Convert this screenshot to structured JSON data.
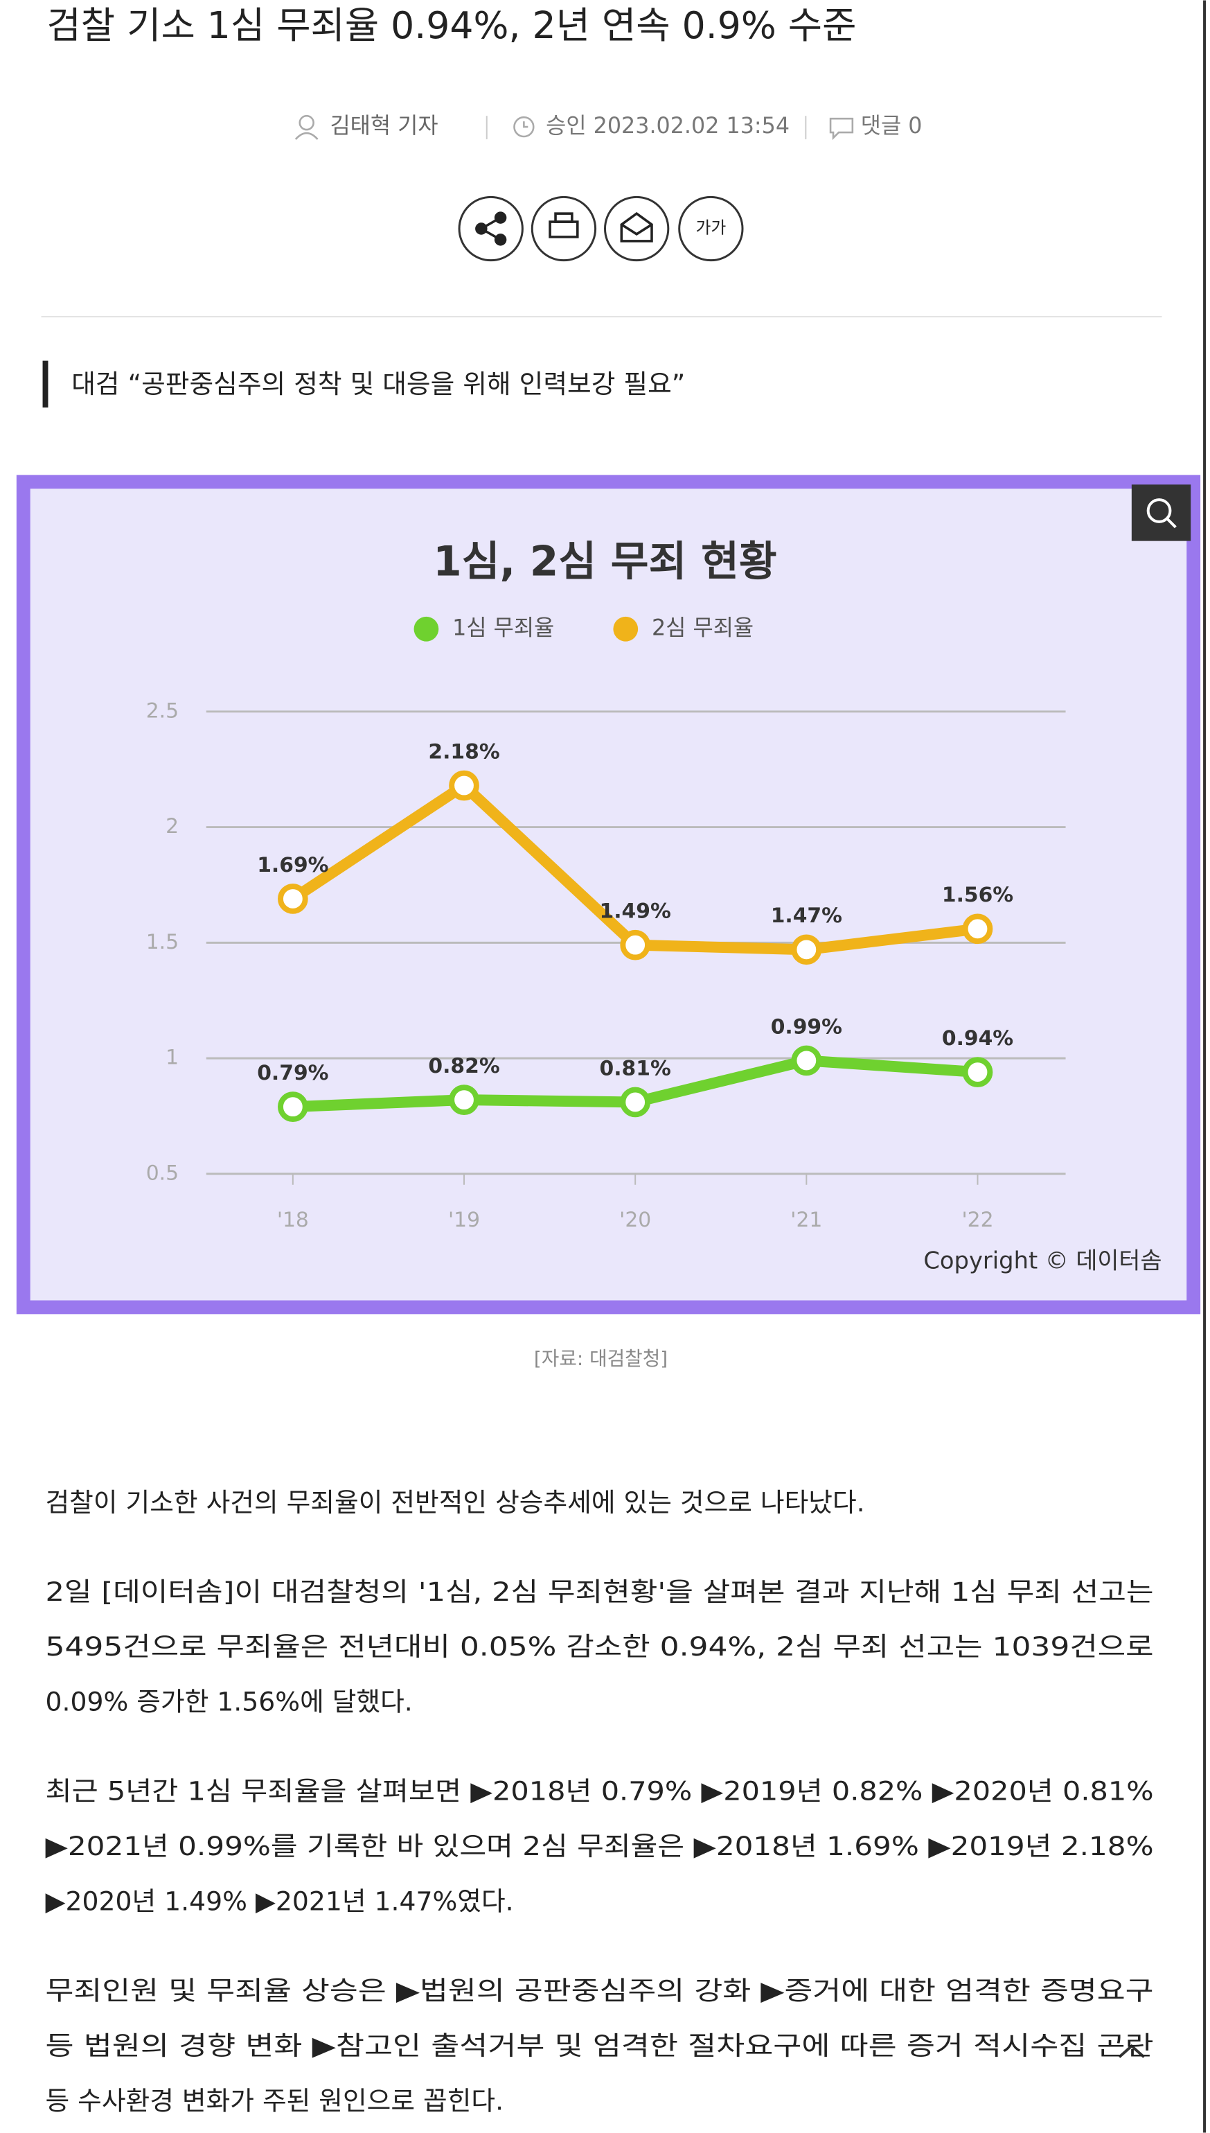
{
  "header": {
    "title": "검찰 기소 1심 무죄율 0.94%, 2년 연속 0.9% 수준",
    "reporter": "김태혁 기자",
    "approved": "승인 2023.02.02 13:54",
    "comments": "댓글 0",
    "font_button": "가가"
  },
  "subtitle": "대검 “공판중심주의 정착 및 대응을 위해 인력보강 필요”",
  "chart_data": {
    "type": "line",
    "title": "1심, 2심 무죄 현황",
    "categories": [
      "'18",
      "'19",
      "'20",
      "'21",
      "'22"
    ],
    "series": [
      {
        "name": "1심 무죄율",
        "color": "#6fd12f",
        "values": [
          0.79,
          0.82,
          0.81,
          0.99,
          0.94
        ],
        "value_labels": [
          "0.79%",
          "0.82%",
          "0.81%",
          "0.99%",
          "0.94%"
        ]
      },
      {
        "name": "2심 무죄율",
        "color": "#f0b31a",
        "values": [
          1.69,
          2.18,
          1.49,
          1.47,
          1.56
        ],
        "value_labels": [
          "1.69%",
          "2.18%",
          "1.49%",
          "1.47%",
          "1.56%"
        ]
      }
    ],
    "ylim": [
      0.5,
      2.5
    ],
    "yticks": [
      0.5,
      1,
      1.5,
      2,
      2.5
    ],
    "grid": true,
    "copyright": "Copyright © 데이터솜"
  },
  "caption": "[자료: 대검찰청]",
  "body": {
    "paragraphs": [
      [
        "검찰이 기소한 사건의 무죄율이 전반적인 상승추세에 있는 것으로 나타났다."
      ],
      [
        "2일 [데이터솜]이 대검찰청의 '1심, 2심 무죄현황'을 살펴본 결과 지난해 1심 무죄 선고는",
        "5495건으로 무죄율은 전년대비 0.05% 감소한 0.94%, 2심 무죄 선고는 1039건으로",
        "0.09% 증가한 1.56%에 달했다."
      ],
      [
        "최근 5년간 1심 무죄율을 살펴보면 ▶2018년 0.79% ▶2019년 0.82% ▶2020년 0.81%",
        "▶2021년 0.99%를 기록한 바 있으며 2심 무죄율은 ▶2018년 1.69% ▶2019년 2.18%",
        "▶2020년 1.49% ▶2021년 1.47%였다."
      ],
      [
        "무죄인원 및 무죄율 상승은 ▶법원의 공판중심주의 강화 ▶증거에 대한 엄격한 증명요구",
        "등 법원의 경향 변화 ▶참고인 출석거부 및 엄격한 절차요구에 따른 증거 적시수집 곤란",
        "등 수사환경 변화가 주된 원인으로 꼽힌다."
      ]
    ]
  }
}
